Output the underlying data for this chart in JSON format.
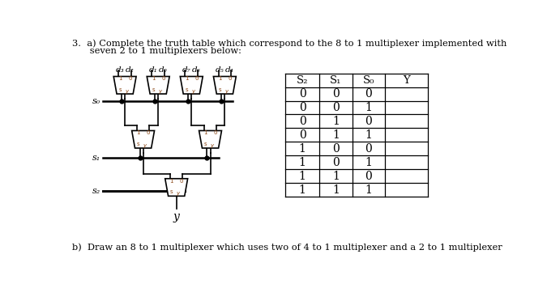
{
  "title_line1": "3.  a) Complete the truth table which correspond to the 8 to 1 multiplexer implemented with",
  "title_line2": "      seven 2 to 1 multiplexers below:",
  "bottom_text": "b)  Draw an 8 to 1 multiplexer which uses two of 4 to 1 multiplexer and a 2 to 1 multiplexer",
  "table_headers": [
    "S₂",
    "S₁",
    "S₀",
    "Y"
  ],
  "table_rows": [
    [
      "0",
      "0",
      "0",
      ""
    ],
    [
      "0",
      "0",
      "1",
      ""
    ],
    [
      "0",
      "1",
      "0",
      ""
    ],
    [
      "0",
      "1",
      "1",
      ""
    ],
    [
      "1",
      "0",
      "0",
      ""
    ],
    [
      "1",
      "0",
      "1",
      ""
    ],
    [
      "1",
      "1",
      "0",
      ""
    ],
    [
      "1",
      "1",
      "1",
      ""
    ]
  ],
  "mux_labels_top": [
    [
      "d₃",
      "d₂"
    ],
    [
      "d₁",
      "d₀"
    ],
    [
      "d₇",
      "d₆"
    ],
    [
      "d₅",
      "d₄"
    ]
  ],
  "s0_label": "s₀",
  "s1_label": "s₁",
  "s2_label": "s₂",
  "y_label": "y",
  "bg_color": "#ffffff",
  "text_color": "#000000",
  "label_color": "#8B4513",
  "mux_fill": "#ffffff",
  "mux_border": "#000000",
  "lw": 1.2,
  "lw_signal": 1.8
}
